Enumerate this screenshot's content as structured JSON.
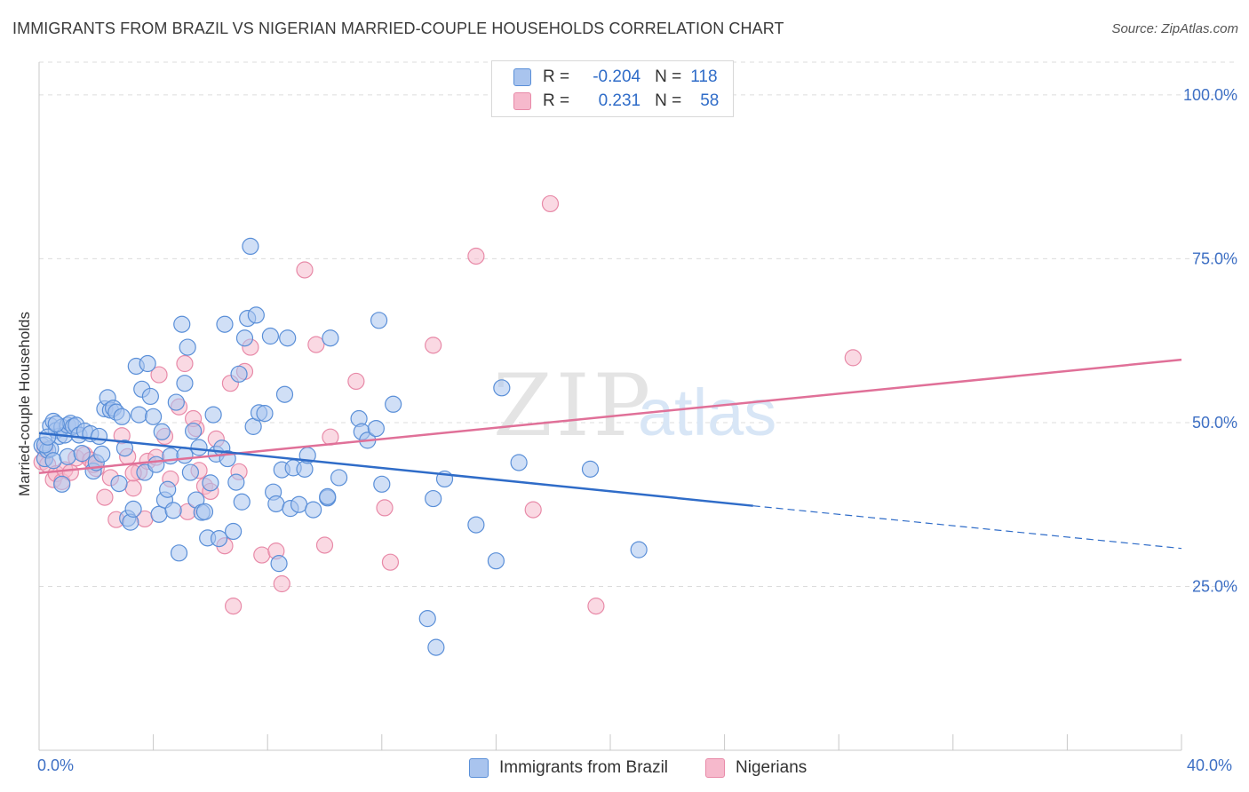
{
  "title": "IMMIGRANTS FROM BRAZIL VS NIGERIAN MARRIED-COUPLE HOUSEHOLDS CORRELATION CHART",
  "source": "Source: ZipAtlas.com",
  "watermark": {
    "zip": "ZIP",
    "atlas": "atlas"
  },
  "colors": {
    "blue_fill": "#a9c4ee",
    "blue_stroke": "#5a8fd8",
    "blue_line": "#2f6cc8",
    "pink_fill": "#f6b9cc",
    "pink_stroke": "#e88aa8",
    "pink_line": "#e07098",
    "grid": "#dcdcdc",
    "tick_text": "#3d6fc4"
  },
  "legend": {
    "rows": [
      {
        "r_label": "R =",
        "r_value": "-0.204",
        "n_label": "N =",
        "n_value": "118"
      },
      {
        "r_label": "R =",
        "r_value": "0.231",
        "n_label": "N =",
        "n_value": "58"
      }
    ]
  },
  "bottom_legend": {
    "series1": "Immigrants from Brazil",
    "series2": "Nigerians"
  },
  "chart_data": {
    "type": "scatter",
    "title": "IMMIGRANTS FROM BRAZIL VS NIGERIAN MARRIED-COUPLE HOUSEHOLDS CORRELATION CHART",
    "xlabel": "",
    "ylabel": "Married-couple Households",
    "xlim": [
      0,
      40
    ],
    "ylim": [
      0,
      105
    ],
    "x_tick_labels": [
      "0.0%",
      "40.0%"
    ],
    "y_ticks": [
      25,
      50,
      75,
      100
    ],
    "y_tick_labels": [
      "25.0%",
      "50.0%",
      "75.0%",
      "100.0%"
    ],
    "grid": true,
    "legend_position": "top-center",
    "series": [
      {
        "name": "Immigrants from Brazil",
        "color": "#a9c4ee",
        "r": -0.204,
        "n": 118,
        "trend": {
          "x": [
            0,
            25
          ],
          "y": [
            48.4,
            37.3
          ],
          "dashed_to": [
            40,
            30.8
          ]
        },
        "points": [
          [
            0.1,
            46.5
          ],
          [
            0.2,
            44.5
          ],
          [
            0.3,
            45.8
          ],
          [
            0.4,
            49.5
          ],
          [
            0.5,
            50.2
          ],
          [
            0.6,
            48.8
          ],
          [
            0.7,
            47.9
          ],
          [
            0.8,
            49.3
          ],
          [
            0.9,
            48.1
          ],
          [
            1.0,
            49.6
          ],
          [
            1.1,
            49.9
          ],
          [
            1.2,
            49.4
          ],
          [
            1.3,
            49.6
          ],
          [
            0.4,
            46.0
          ],
          [
            0.5,
            44.2
          ],
          [
            0.8,
            40.6
          ],
          [
            1.0,
            44.8
          ],
          [
            1.4,
            48.1
          ],
          [
            1.5,
            45.3
          ],
          [
            1.6,
            48.7
          ],
          [
            1.8,
            48.3
          ],
          [
            1.9,
            42.6
          ],
          [
            2.0,
            43.9
          ],
          [
            2.1,
            47.9
          ],
          [
            2.2,
            45.2
          ],
          [
            2.3,
            52.1
          ],
          [
            2.4,
            53.8
          ],
          [
            2.5,
            51.9
          ],
          [
            2.6,
            52.2
          ],
          [
            2.7,
            51.6
          ],
          [
            2.8,
            40.7
          ],
          [
            2.9,
            50.9
          ],
          [
            3.0,
            46.1
          ],
          [
            3.1,
            35.4
          ],
          [
            3.2,
            34.8
          ],
          [
            3.3,
            36.8
          ],
          [
            3.4,
            58.6
          ],
          [
            3.5,
            51.2
          ],
          [
            3.6,
            55.1
          ],
          [
            3.7,
            42.4
          ],
          [
            3.8,
            59.0
          ],
          [
            3.9,
            54.0
          ],
          [
            4.0,
            50.9
          ],
          [
            4.1,
            43.6
          ],
          [
            4.2,
            36.0
          ],
          [
            4.3,
            48.6
          ],
          [
            4.4,
            38.2
          ],
          [
            4.5,
            39.8
          ],
          [
            4.6,
            44.9
          ],
          [
            4.7,
            36.6
          ],
          [
            4.8,
            53.1
          ],
          [
            4.9,
            30.1
          ],
          [
            5.0,
            65.0
          ],
          [
            5.1,
            56.0
          ],
          [
            5.2,
            61.5
          ],
          [
            5.3,
            42.4
          ],
          [
            5.4,
            48.7
          ],
          [
            5.5,
            38.2
          ],
          [
            5.6,
            46.2
          ],
          [
            5.7,
            36.3
          ],
          [
            5.8,
            36.4
          ],
          [
            5.9,
            32.4
          ],
          [
            6.0,
            40.8
          ],
          [
            6.1,
            51.2
          ],
          [
            6.2,
            45.2
          ],
          [
            6.3,
            32.3
          ],
          [
            6.4,
            46.1
          ],
          [
            6.5,
            65.0
          ],
          [
            6.6,
            44.5
          ],
          [
            6.8,
            33.4
          ],
          [
            6.9,
            40.9
          ],
          [
            7.0,
            57.4
          ],
          [
            7.1,
            37.9
          ],
          [
            7.2,
            62.9
          ],
          [
            7.3,
            65.9
          ],
          [
            7.4,
            76.9
          ],
          [
            7.5,
            49.4
          ],
          [
            7.6,
            66.4
          ],
          [
            7.7,
            51.5
          ],
          [
            7.9,
            51.4
          ],
          [
            8.1,
            63.2
          ],
          [
            8.2,
            39.4
          ],
          [
            8.3,
            37.6
          ],
          [
            8.4,
            28.5
          ],
          [
            8.5,
            42.8
          ],
          [
            8.6,
            54.3
          ],
          [
            8.7,
            62.9
          ],
          [
            8.8,
            36.9
          ],
          [
            8.9,
            43.1
          ],
          [
            9.1,
            37.5
          ],
          [
            9.3,
            42.9
          ],
          [
            9.4,
            45.0
          ],
          [
            9.6,
            36.7
          ],
          [
            10.1,
            38.5
          ],
          [
            10.2,
            62.9
          ],
          [
            10.5,
            41.6
          ],
          [
            11.2,
            50.6
          ],
          [
            11.3,
            48.6
          ],
          [
            11.5,
            47.3
          ],
          [
            11.8,
            49.1
          ],
          [
            11.9,
            65.6
          ],
          [
            12.0,
            40.6
          ],
          [
            12.4,
            52.8
          ],
          [
            13.8,
            38.4
          ],
          [
            13.6,
            20.1
          ],
          [
            13.9,
            15.7
          ],
          [
            14.2,
            41.4
          ],
          [
            15.3,
            34.4
          ],
          [
            16.0,
            28.9
          ],
          [
            16.2,
            55.3
          ],
          [
            16.8,
            43.9
          ],
          [
            19.3,
            42.9
          ],
          [
            21.0,
            30.6
          ],
          [
            0.2,
            46.6
          ],
          [
            0.3,
            47.8
          ],
          [
            0.6,
            49.8
          ],
          [
            10.1,
            38.7
          ],
          [
            5.1,
            45.0
          ]
        ]
      },
      {
        "name": "Nigerians",
        "color": "#f6b9cc",
        "r": 0.231,
        "n": 58,
        "trend": {
          "x": [
            0,
            40
          ],
          "y": [
            42.3,
            59.6
          ]
        },
        "points": [
          [
            0.1,
            44.0
          ],
          [
            0.3,
            43.6
          ],
          [
            0.5,
            41.3
          ],
          [
            0.6,
            42.2
          ],
          [
            0.8,
            41.0
          ],
          [
            0.9,
            42.8
          ],
          [
            1.1,
            42.4
          ],
          [
            1.3,
            44.6
          ],
          [
            1.6,
            45.1
          ],
          [
            1.8,
            44.3
          ],
          [
            2.0,
            43.0
          ],
          [
            2.3,
            38.6
          ],
          [
            2.5,
            41.6
          ],
          [
            2.7,
            35.2
          ],
          [
            2.9,
            48.0
          ],
          [
            3.1,
            44.8
          ],
          [
            3.3,
            40.0
          ],
          [
            3.5,
            42.5
          ],
          [
            3.7,
            35.3
          ],
          [
            3.8,
            44.1
          ],
          [
            4.1,
            44.7
          ],
          [
            4.2,
            57.3
          ],
          [
            4.4,
            47.9
          ],
          [
            4.6,
            41.4
          ],
          [
            4.9,
            52.4
          ],
          [
            5.1,
            59.0
          ],
          [
            5.2,
            36.4
          ],
          [
            5.5,
            49.1
          ],
          [
            5.6,
            42.7
          ],
          [
            5.8,
            40.3
          ],
          [
            6.0,
            39.5
          ],
          [
            6.2,
            47.5
          ],
          [
            6.5,
            31.2
          ],
          [
            6.7,
            56.0
          ],
          [
            6.8,
            22.0
          ],
          [
            7.0,
            42.5
          ],
          [
            7.2,
            57.8
          ],
          [
            7.4,
            61.5
          ],
          [
            7.8,
            29.8
          ],
          [
            8.3,
            30.4
          ],
          [
            8.5,
            25.4
          ],
          [
            9.3,
            73.3
          ],
          [
            9.7,
            61.9
          ],
          [
            10.0,
            31.3
          ],
          [
            10.2,
            47.8
          ],
          [
            11.1,
            56.3
          ],
          [
            12.1,
            37.0
          ],
          [
            12.3,
            28.7
          ],
          [
            13.8,
            61.8
          ],
          [
            15.3,
            75.4
          ],
          [
            17.3,
            36.7
          ],
          [
            17.9,
            83.4
          ],
          [
            19.5,
            22.0
          ],
          [
            28.5,
            59.9
          ],
          [
            0.2,
            45.9
          ],
          [
            1.9,
            43.6
          ],
          [
            3.3,
            42.3
          ],
          [
            5.4,
            50.6
          ]
        ]
      }
    ]
  }
}
